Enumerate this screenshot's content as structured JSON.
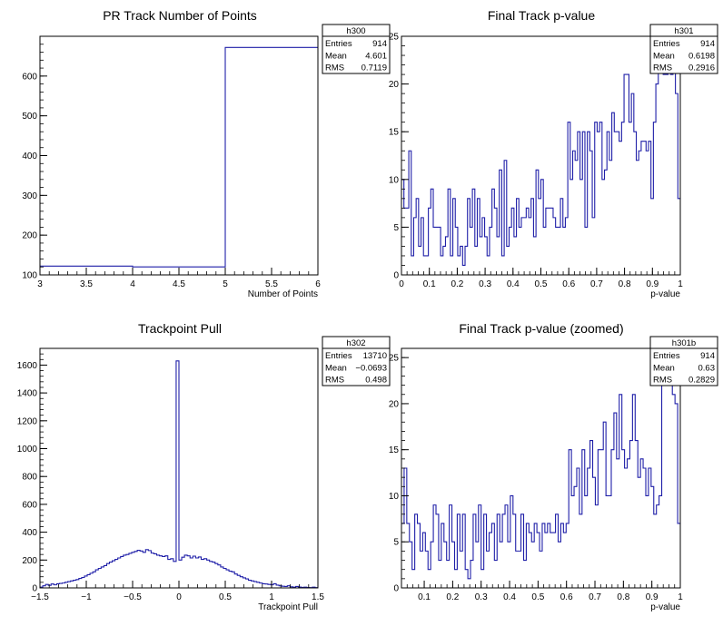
{
  "chart_data": [
    {
      "type": "bar",
      "title": "PR Track Number of Points",
      "xlabel": "Number of Points",
      "ylabel": "",
      "xlim": [
        3,
        6
      ],
      "ylim": [
        100,
        700
      ],
      "xticks": [
        3,
        3.5,
        4,
        4.5,
        5,
        5.5,
        6
      ],
      "xtick_labels": [
        "3",
        "3.5",
        "4",
        "4.5",
        "5",
        "5.5",
        "6"
      ],
      "yticks": [
        100,
        200,
        300,
        400,
        500,
        600
      ],
      "ytick_labels": [
        "100",
        "200",
        "300",
        "400",
        "500",
        "600"
      ],
      "bin_edges": [
        3,
        4,
        5,
        6
      ],
      "values": [
        122,
        120,
        672
      ],
      "stats": {
        "name": "h300",
        "rows": [
          [
            "Entries",
            "914"
          ],
          [
            "Mean",
            "4.601"
          ],
          [
            "RMS",
            "0.7119"
          ]
        ]
      }
    },
    {
      "type": "bar",
      "title": "Final Track p-value",
      "xlabel": "p-value",
      "ylabel": "",
      "xlim": [
        0,
        1
      ],
      "ylim": [
        0,
        25
      ],
      "xticks": [
        0,
        0.1,
        0.2,
        0.3,
        0.4,
        0.5,
        0.6,
        0.7,
        0.8,
        0.9,
        1
      ],
      "xtick_labels": [
        "0",
        "0.1",
        "0.2",
        "0.3",
        "0.4",
        "0.5",
        "0.6",
        "0.7",
        "0.8",
        "0.9",
        "1"
      ],
      "yticks": [
        0,
        5,
        10,
        15,
        20,
        25
      ],
      "ytick_labels": [
        "0",
        "5",
        "10",
        "15",
        "20",
        "25"
      ],
      "bin_edges_range": [
        0,
        1
      ],
      "values": [
        10,
        7,
        7,
        13,
        2,
        6,
        8,
        3,
        6,
        2,
        2,
        7,
        9,
        5,
        5,
        5,
        2,
        3,
        4,
        9,
        2,
        8,
        5,
        2,
        3,
        1,
        3,
        8,
        5,
        9,
        3,
        8,
        4,
        6,
        4,
        2,
        5,
        9,
        7,
        4,
        11,
        2,
        12,
        3,
        5,
        7,
        4,
        8,
        5,
        6,
        6,
        7,
        6,
        8,
        4,
        11,
        8,
        10,
        5,
        7,
        7,
        7,
        6,
        5,
        5,
        8,
        5,
        6,
        16,
        10,
        13,
        12,
        15,
        10,
        15,
        5,
        15,
        13,
        6,
        16,
        15,
        16,
        10,
        11,
        15,
        12,
        17,
        15,
        15,
        14,
        16,
        21,
        21,
        16,
        19,
        15,
        12,
        13,
        14,
        14,
        13,
        14,
        8,
        16,
        20,
        23,
        24,
        21,
        21,
        24,
        21,
        23,
        19,
        8
      ],
      "stats": {
        "name": "h301",
        "rows": [
          [
            "Entries",
            "914"
          ],
          [
            "Mean",
            "0.6198"
          ],
          [
            "RMS",
            "0.2916"
          ]
        ]
      }
    },
    {
      "type": "bar",
      "title": "Trackpoint Pull",
      "xlabel": "Trackpoint Pull",
      "ylabel": "",
      "xlim": [
        -1.5,
        1.5
      ],
      "ylim": [
        0,
        1720
      ],
      "xticks": [
        -1.5,
        -1,
        -0.5,
        0,
        0.5,
        1,
        1.5
      ],
      "xtick_labels": [
        "−1.5",
        "−1",
        "−0.5",
        "0",
        "0.5",
        "1",
        "1.5"
      ],
      "yticks": [
        0,
        200,
        400,
        600,
        800,
        1000,
        1200,
        1400,
        1600
      ],
      "ytick_labels": [
        "0",
        "200",
        "400",
        "600",
        "800",
        "1000",
        "1200",
        "1400",
        "1600"
      ],
      "bin_edges_range": [
        -1.5,
        1.5
      ],
      "values": [
        5,
        15,
        25,
        18,
        28,
        22,
        30,
        32,
        35,
        40,
        45,
        50,
        55,
        60,
        68,
        75,
        85,
        95,
        105,
        115,
        130,
        140,
        150,
        160,
        175,
        185,
        195,
        205,
        215,
        225,
        235,
        240,
        248,
        255,
        262,
        270,
        265,
        255,
        275,
        268,
        250,
        245,
        235,
        230,
        225,
        230,
        205,
        210,
        190,
        1630,
        200,
        220,
        235,
        230,
        215,
        228,
        215,
        222,
        205,
        210,
        200,
        190,
        185,
        175,
        165,
        150,
        140,
        130,
        120,
        115,
        100,
        90,
        80,
        72,
        65,
        55,
        50,
        45,
        40,
        35,
        30,
        28,
        25,
        22,
        30,
        20,
        15,
        12,
        10,
        15,
        8,
        5,
        10,
        6,
        4,
        5,
        3,
        2,
        5,
        2
      ],
      "stats": {
        "name": "h302",
        "rows": [
          [
            "Entries",
            "13710"
          ],
          [
            "Mean",
            "−0.0693"
          ],
          [
            "RMS",
            "0.498"
          ]
        ]
      }
    },
    {
      "type": "bar",
      "title": "Final Track p-value (zoomed)",
      "xlabel": "p-value",
      "ylabel": "",
      "xlim": [
        0.02,
        1
      ],
      "ylim": [
        0,
        26
      ],
      "xticks": [
        0.1,
        0.2,
        0.3,
        0.4,
        0.5,
        0.6,
        0.7,
        0.8,
        0.9,
        1
      ],
      "xtick_labels": [
        "0.1",
        "0.2",
        "0.3",
        "0.4",
        "0.5",
        "0.6",
        "0.7",
        "0.8",
        "0.9",
        "1"
      ],
      "yticks": [
        0,
        5,
        10,
        15,
        20,
        25
      ],
      "ytick_labels": [
        "0",
        "5",
        "10",
        "15",
        "20",
        "25"
      ],
      "bin_edges_range": [
        0.02,
        1
      ],
      "values": [
        7,
        13,
        7,
        5,
        2,
        8,
        7,
        4,
        6,
        4,
        2,
        5,
        9,
        8,
        3,
        7,
        5,
        3,
        9,
        5,
        2,
        8,
        4,
        8,
        2,
        1,
        3,
        8,
        5,
        9,
        2,
        8,
        4,
        6,
        7,
        3,
        8,
        5,
        8,
        9,
        5,
        10,
        8,
        4,
        4,
        8,
        3,
        7,
        6,
        5,
        7,
        6,
        4,
        7,
        6,
        7,
        6,
        6,
        8,
        5,
        7,
        6,
        7,
        15,
        10,
        11,
        13,
        8,
        15,
        10,
        13,
        16,
        12,
        9,
        15,
        15,
        18,
        10,
        10,
        15,
        19,
        14,
        21,
        15,
        13,
        14,
        16,
        21,
        16,
        12,
        14,
        13,
        10,
        13,
        11,
        8,
        9,
        10,
        22,
        25,
        22,
        24,
        21,
        20,
        7
      ],
      "stats": {
        "name": "h301b",
        "rows": [
          [
            "Entries",
            "914"
          ],
          [
            "Mean",
            "0.63"
          ],
          [
            "RMS",
            "0.2829"
          ]
        ]
      }
    }
  ]
}
